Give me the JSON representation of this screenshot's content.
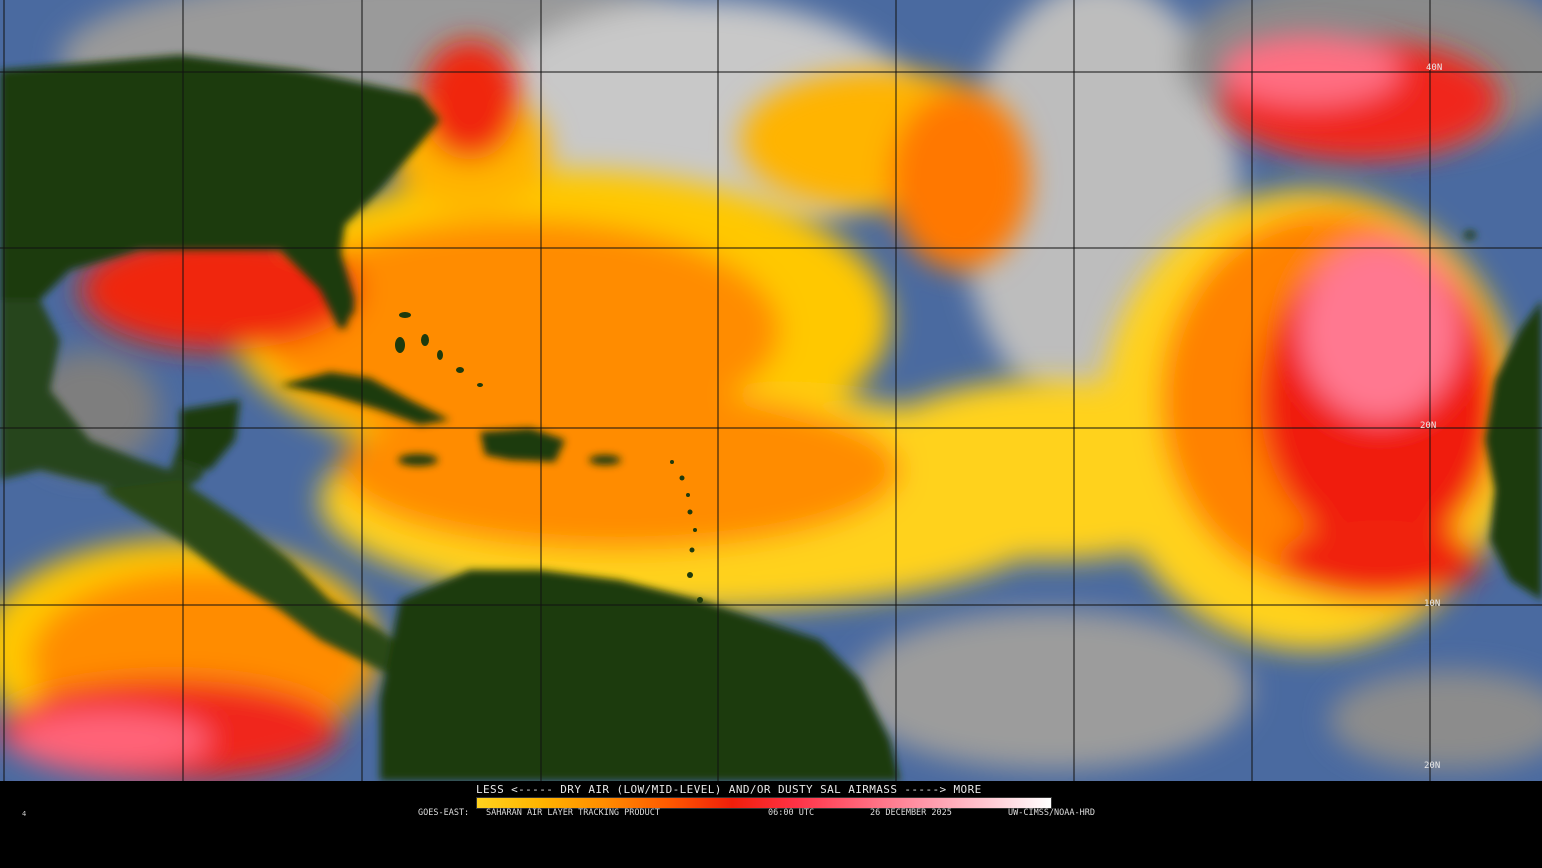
{
  "product": {
    "satellite": "GOES-EAST:",
    "name": "SAHARAN AIR LAYER TRACKING PRODUCT",
    "time": "06:00 UTC",
    "date": "26 DECEMBER 2025",
    "credit": "UW-CIMSS/NOAA-HRD",
    "frame": "4"
  },
  "legend": {
    "text": "LESS <----- DRY AIR (LOW/MID-LEVEL) AND/OR DUSTY SAL AIRMASS -----> MORE",
    "colors": [
      "#ffd21e",
      "#ffb400",
      "#ff8c00",
      "#ff5a00",
      "#f01e0a",
      "#ff3246",
      "#ff6478",
      "#ff96a8",
      "#ffc8d2",
      "#ffffff"
    ]
  },
  "lat_labels": [
    "40N",
    "20N",
    "10N",
    "20N"
  ],
  "map_colors": {
    "ocean": "#4a6aa0",
    "land": "#1e3a0c",
    "cloud": "#b4b4b4",
    "dust_low": "#ffd21e",
    "dust_mid": "#ff8c00",
    "dust_high": "#f01e0a",
    "dust_max": "#ff96a8"
  }
}
